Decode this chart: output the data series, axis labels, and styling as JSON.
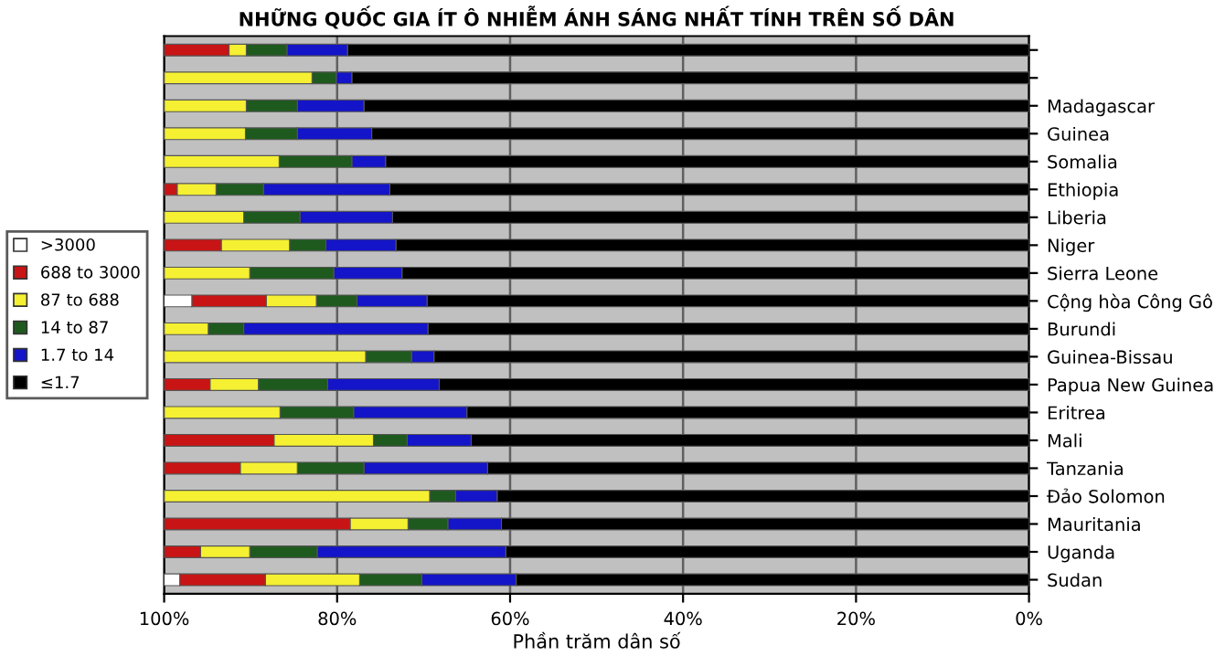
{
  "chart_data": {
    "type": "bar",
    "orientation": "horizontal",
    "stacked": true,
    "title": "NHỮNG QUỐC GIA ÍT Ô NHIỄM ÁNH SÁNG NHẤT TÍNH TRÊN SỐ DÂN",
    "xlabel": "Phần trăm dân số",
    "categories": [
      null,
      null,
      "Madagascar",
      "Guinea",
      "Somalia",
      "Ethiopia",
      "Liberia",
      "Niger",
      "Sierra Leone",
      "Cộng hòa Công Gô",
      "Burundi",
      "Guinea-Bissau",
      "Papua New Guinea",
      "Eritrea",
      "Mali",
      "Tanzania",
      "Đảo Solomon",
      "Mauritania",
      "Uganda",
      "Sudan"
    ],
    "series": [
      {
        "name": "≤1.7",
        "color": "#000000",
        "values": [
          78.8,
          78.3,
          76.9,
          76.0,
          74.4,
          73.9,
          73.6,
          73.2,
          72.5,
          69.6,
          69.5,
          68.8,
          68.2,
          65.0,
          64.5,
          62.6,
          61.5,
          61.0,
          60.5,
          59.3
        ]
      },
      {
        "name": "1.7 to 14",
        "color": "#1414c8",
        "values": [
          7.0,
          1.8,
          7.7,
          8.6,
          3.9,
          14.6,
          10.7,
          8.1,
          7.9,
          8.1,
          21.3,
          2.6,
          12.9,
          13.1,
          7.4,
          14.3,
          4.8,
          6.2,
          21.8,
          10.9
        ]
      },
      {
        "name": "14 to 87",
        "color": "#1e5a1e",
        "values": [
          4.7,
          2.8,
          5.9,
          6.0,
          8.4,
          5.5,
          6.5,
          4.2,
          9.7,
          4.7,
          4.1,
          5.3,
          8.0,
          8.5,
          3.9,
          7.7,
          3.0,
          4.6,
          7.8,
          7.2
        ]
      },
      {
        "name": "87 to 688",
        "color": "#f5f032",
        "values": [
          2.0,
          17.1,
          9.5,
          9.4,
          13.3,
          4.5,
          9.2,
          7.9,
          9.9,
          5.8,
          5.1,
          23.3,
          5.6,
          13.4,
          11.5,
          6.6,
          30.7,
          6.7,
          5.7,
          10.9
        ]
      },
      {
        "name": "688 to 3000",
        "color": "#c81414",
        "values": [
          7.5,
          null,
          null,
          null,
          null,
          1.5,
          null,
          6.6,
          null,
          8.6,
          null,
          null,
          5.3,
          null,
          12.7,
          8.8,
          null,
          21.5,
          4.2,
          9.9
        ]
      },
      {
        "name": ">3000",
        "color": "#ffffff",
        "values": [
          null,
          null,
          null,
          null,
          null,
          null,
          null,
          null,
          null,
          3.2,
          null,
          null,
          null,
          null,
          null,
          null,
          null,
          null,
          null,
          1.8
        ]
      }
    ],
    "xlim": [
      100,
      0
    ],
    "xticks": [
      {
        "value": 100,
        "label": "100%"
      },
      {
        "value": 80,
        "label": "80%"
      },
      {
        "value": 60,
        "label": "60%"
      },
      {
        "value": 40,
        "label": "40%"
      },
      {
        "value": 20,
        "label": "20%"
      },
      {
        "value": 0,
        "label": "0%"
      }
    ],
    "grid": "x",
    "legend": "left"
  }
}
